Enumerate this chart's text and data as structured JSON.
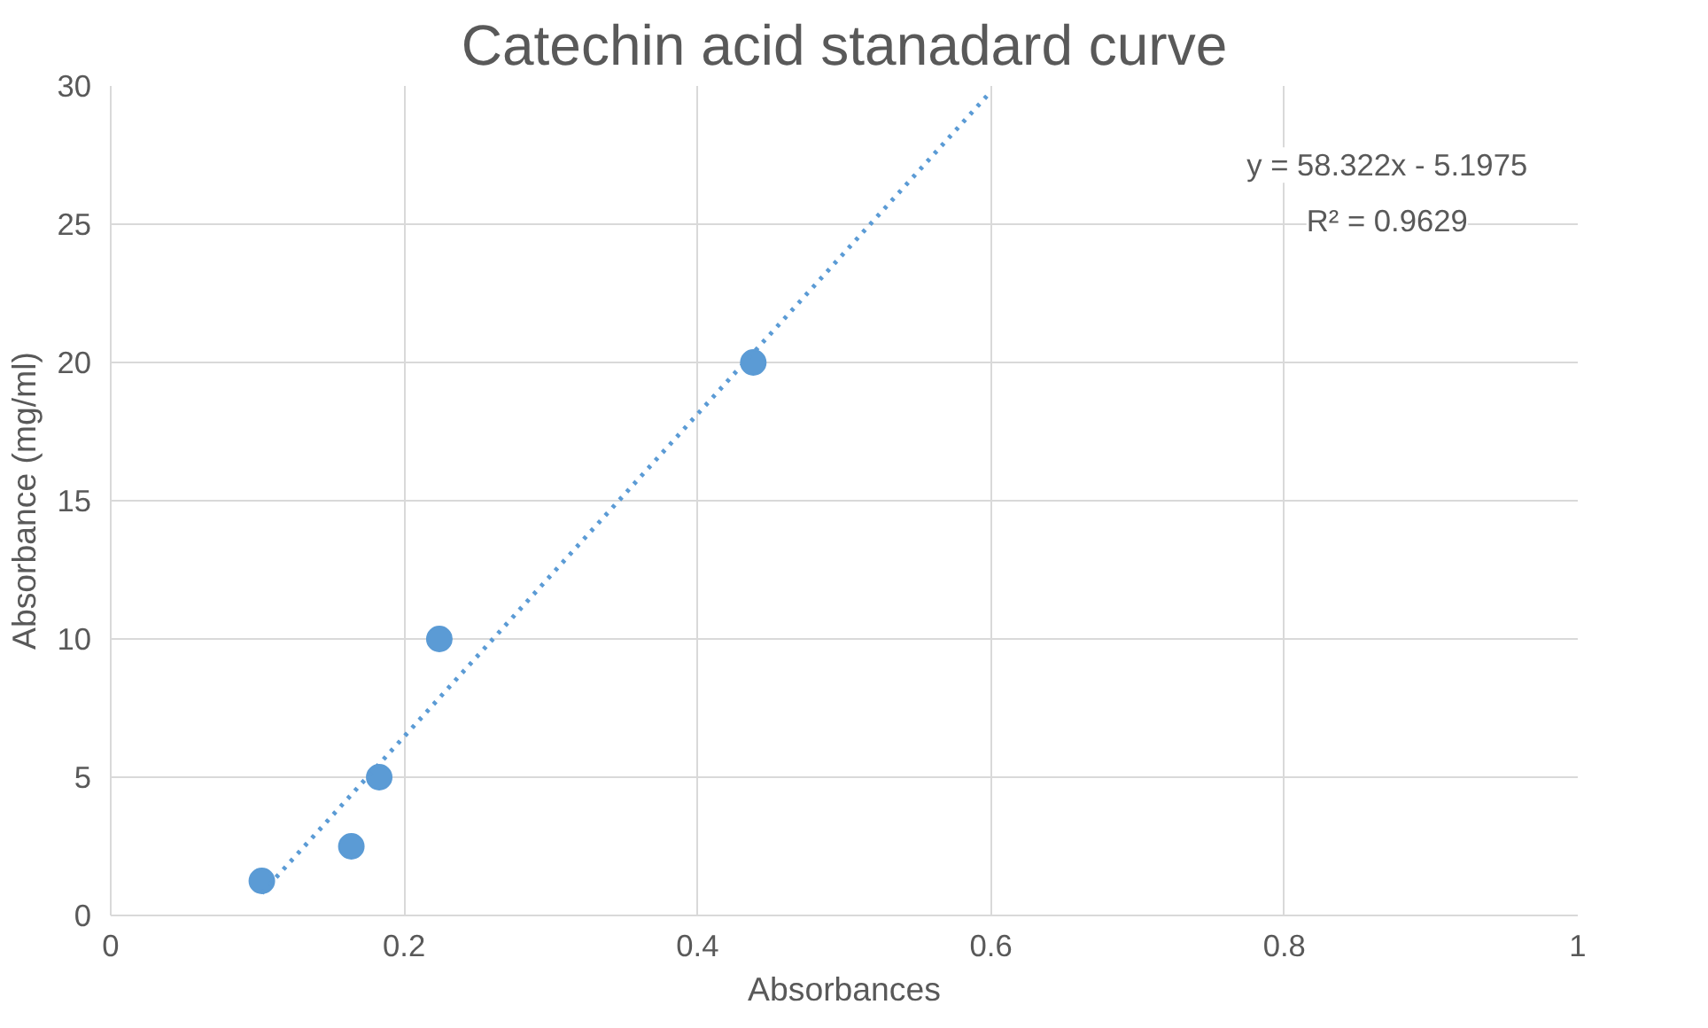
{
  "chart_data": {
    "type": "scatter",
    "title": "Catechin acid stanadard curve",
    "xlabel": "Absorbances",
    "ylabel": "Absorbance (mg/ml)",
    "xlim": [
      0,
      1
    ],
    "ylim": [
      0,
      30
    ],
    "xticks": [
      0,
      0.2,
      0.4,
      0.6,
      0.8,
      1
    ],
    "yticks": [
      0,
      5,
      10,
      15,
      20,
      25,
      30
    ],
    "grid": true,
    "series": [
      {
        "marker": "circle",
        "color": "#5b9bd5",
        "x": [
          0.103,
          0.164,
          0.183,
          0.224,
          0.438
        ],
        "values": [
          1.25,
          2.5,
          5,
          10,
          20
        ]
      },
      {
        "type": "line",
        "color": "#5b9bd5",
        "line_style": "dotted",
        "x": [
          0.103,
          0.6
        ],
        "values": [
          0.81,
          29.8
        ]
      }
    ],
    "annotations": [
      "y = 58.322x - 5.1975",
      "R² = 0.9629"
    ]
  }
}
